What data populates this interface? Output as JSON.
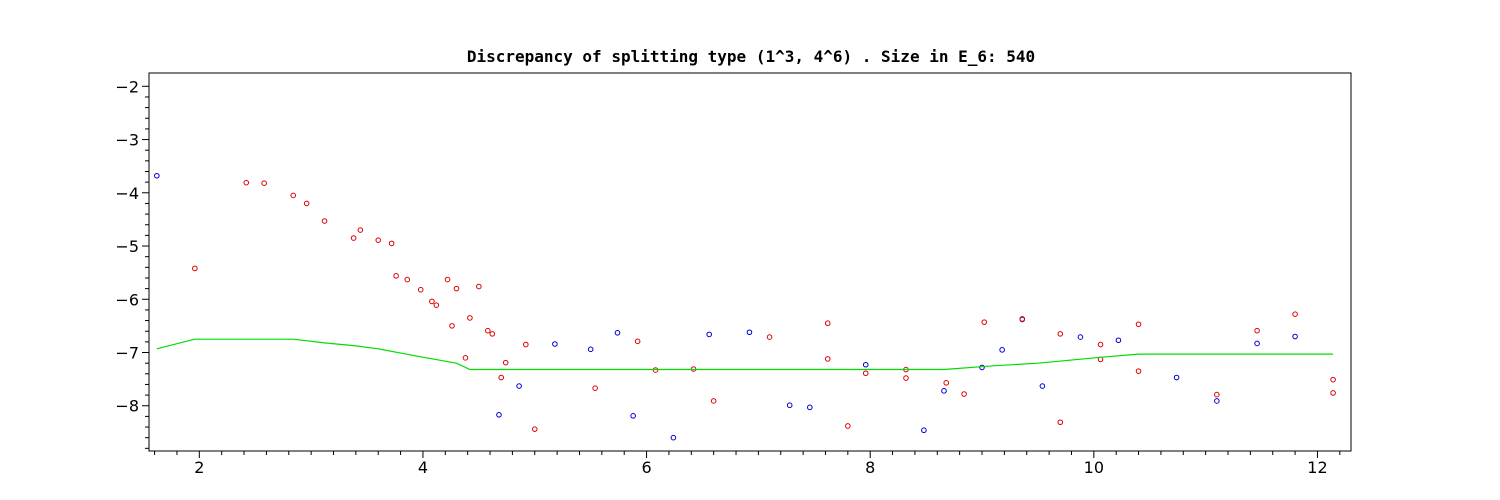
{
  "chart_data": {
    "type": "scatter",
    "title": "Discrepancy of splitting type (1^3, 4^6) .  Size in E_6: 540",
    "xlabel": "",
    "ylabel": "",
    "xlim": [
      1.55,
      12.3
    ],
    "ylim": [
      -8.85,
      -1.75
    ],
    "x_ticks": [
      2,
      4,
      6,
      8,
      10,
      12
    ],
    "y_ticks": [
      -2,
      -3,
      -4,
      -5,
      -6,
      -7,
      -8
    ],
    "grid": false,
    "legend": "none",
    "colors": {
      "red": "#e00000",
      "blue": "#0000d0",
      "green": "#00dd00"
    },
    "series": [
      {
        "color": "blue",
        "points": [
          [
            1.62,
            -3.68
          ],
          [
            4.68,
            -8.17
          ],
          [
            4.86,
            -7.63
          ],
          [
            5.18,
            -6.84
          ],
          [
            5.5,
            -6.94
          ],
          [
            5.74,
            -6.63
          ],
          [
            5.88,
            -8.19
          ],
          [
            6.24,
            -8.6
          ],
          [
            6.56,
            -6.66
          ],
          [
            6.92,
            -6.62
          ],
          [
            7.28,
            -7.99
          ],
          [
            7.46,
            -8.03
          ],
          [
            7.96,
            -7.23
          ],
          [
            8.48,
            -8.46
          ],
          [
            8.66,
            -7.72
          ],
          [
            9.0,
            -7.28
          ],
          [
            9.18,
            -6.95
          ],
          [
            9.36,
            -6.37
          ],
          [
            9.54,
            -7.63
          ],
          [
            9.88,
            -6.71
          ],
          [
            10.22,
            -6.77
          ],
          [
            10.74,
            -7.47
          ],
          [
            11.1,
            -7.91
          ],
          [
            11.46,
            -6.83
          ],
          [
            11.8,
            -6.7
          ]
        ]
      },
      {
        "color": "red",
        "points": [
          [
            1.96,
            -5.42
          ],
          [
            2.42,
            -3.81
          ],
          [
            2.58,
            -3.82
          ],
          [
            2.84,
            -4.05
          ],
          [
            2.96,
            -4.2
          ],
          [
            3.12,
            -4.53
          ],
          [
            3.38,
            -4.85
          ],
          [
            3.44,
            -4.7
          ],
          [
            3.6,
            -4.89
          ],
          [
            3.72,
            -4.95
          ],
          [
            3.76,
            -5.56
          ],
          [
            3.86,
            -5.63
          ],
          [
            3.98,
            -5.82
          ],
          [
            4.08,
            -6.04
          ],
          [
            4.12,
            -6.11
          ],
          [
            4.22,
            -5.63
          ],
          [
            4.26,
            -6.5
          ],
          [
            4.3,
            -5.8
          ],
          [
            4.38,
            -7.1
          ],
          [
            4.42,
            -6.35
          ],
          [
            4.5,
            -5.76
          ],
          [
            4.58,
            -6.59
          ],
          [
            4.62,
            -6.65
          ],
          [
            4.7,
            -7.47
          ],
          [
            4.74,
            -7.19
          ],
          [
            4.92,
            -6.85
          ],
          [
            5.0,
            -8.44
          ],
          [
            5.54,
            -7.67
          ],
          [
            5.92,
            -6.79
          ],
          [
            6.08,
            -7.33
          ],
          [
            6.42,
            -7.31
          ],
          [
            6.6,
            -7.91
          ],
          [
            7.1,
            -6.71
          ],
          [
            7.62,
            -6.45
          ],
          [
            7.62,
            -7.12
          ],
          [
            7.8,
            -8.38
          ],
          [
            7.96,
            -7.39
          ],
          [
            8.32,
            -7.32
          ],
          [
            8.32,
            -7.48
          ],
          [
            8.68,
            -7.57
          ],
          [
            8.84,
            -7.78
          ],
          [
            9.02,
            -6.43
          ],
          [
            9.36,
            -6.38
          ],
          [
            9.7,
            -6.65
          ],
          [
            9.7,
            -8.31
          ],
          [
            10.06,
            -6.85
          ],
          [
            10.06,
            -7.13
          ],
          [
            10.4,
            -6.47
          ],
          [
            10.4,
            -7.35
          ],
          [
            11.1,
            -7.79
          ],
          [
            11.46,
            -6.59
          ],
          [
            11.8,
            -6.28
          ],
          [
            12.14,
            -7.51
          ],
          [
            12.14,
            -7.76
          ]
        ]
      },
      {
        "color": "green",
        "type": "line",
        "points": [
          [
            1.62,
            -6.93
          ],
          [
            1.96,
            -6.75
          ],
          [
            2.84,
            -6.75
          ],
          [
            3.12,
            -6.82
          ],
          [
            3.38,
            -6.87
          ],
          [
            3.6,
            -6.93
          ],
          [
            3.98,
            -7.08
          ],
          [
            4.3,
            -7.2
          ],
          [
            4.42,
            -7.32
          ],
          [
            8.32,
            -7.32
          ],
          [
            8.66,
            -7.32
          ],
          [
            9.1,
            -7.25
          ],
          [
            9.5,
            -7.2
          ],
          [
            10.06,
            -7.09
          ],
          [
            10.4,
            -7.03
          ],
          [
            12.14,
            -7.03
          ]
        ]
      }
    ]
  }
}
